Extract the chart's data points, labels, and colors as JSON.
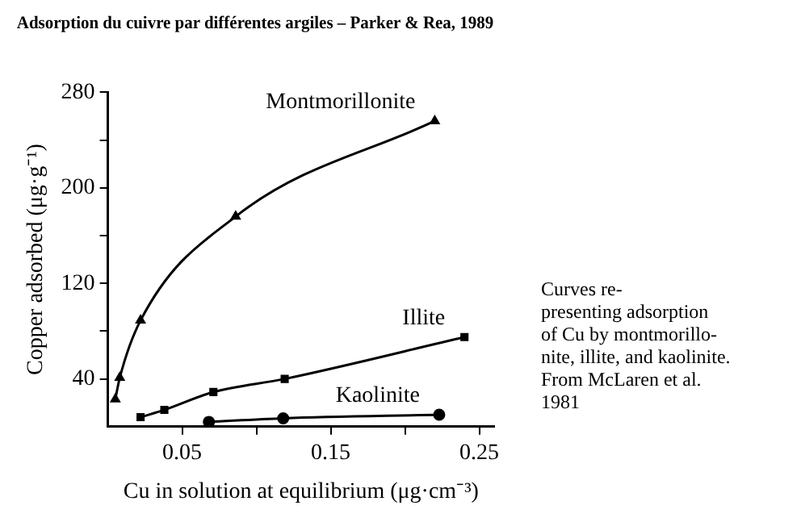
{
  "chart_data": {
    "type": "line",
    "title": "Adsorption du cuivre par différentes argiles – Parker & Rea, 1989",
    "xlabel": "Cu in solution at equilibrium (μg·cm⁻³)",
    "ylabel": "Copper adsorbed (μg·g⁻¹)",
    "series": [
      {
        "name": "Montmorillonite",
        "color": "#000000",
        "marker": "triangle",
        "x": [
          0.005,
          0.008,
          0.022,
          0.086,
          0.22
        ],
        "values": [
          23,
          41,
          89,
          176,
          256
        ]
      },
      {
        "name": "Illite",
        "color": "#000000",
        "marker": "square",
        "x": [
          0.022,
          0.038,
          0.071,
          0.119,
          0.24
        ],
        "values": [
          8,
          14,
          29,
          40,
          75
        ]
      },
      {
        "name": "Kaolinite",
        "color": "#000000",
        "marker": "circle",
        "x": [
          0.068,
          0.118,
          0.223
        ],
        "values": [
          4,
          7,
          10
        ]
      }
    ],
    "xlim": [
      0,
      0.26
    ],
    "xticks": [
      0.05,
      {
        "value": 0.1,
        "label": null
      },
      0.15,
      {
        "value": 0.2,
        "label": null
      },
      0.25
    ],
    "ylim": [
      0,
      280
    ],
    "yticks": [
      40,
      {
        "value": 80,
        "label": null
      },
      120,
      {
        "value": 160,
        "label": null
      },
      200,
      {
        "value": 240,
        "label": null
      },
      280
    ],
    "grid": false,
    "legend": false,
    "annotations": [
      "Curves re-\npresenting adsorption\nof Cu by montmorillo-\nnite, illite, and kaolinite.\n From McLaren et al.\n1981"
    ]
  }
}
